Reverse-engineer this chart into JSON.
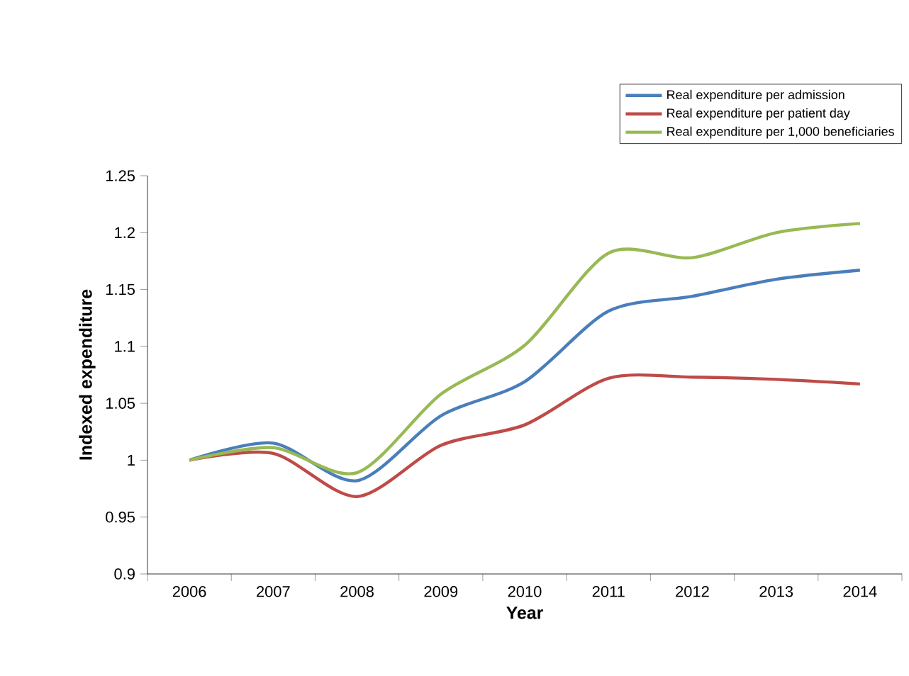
{
  "chart_data": {
    "type": "line",
    "xlabel": "Year",
    "ylabel": "Indexed expenditure",
    "categories": [
      "2006",
      "2007",
      "2008",
      "2009",
      "2010",
      "2011",
      "2012",
      "2013",
      "2014"
    ],
    "series": [
      {
        "name": "Real expenditure per admission",
        "color": "#4a7ebb",
        "values": [
          1.0,
          1.015,
          0.982,
          1.039,
          1.069,
          1.131,
          1.144,
          1.159,
          1.167
        ]
      },
      {
        "name": "Real expenditure per patient day",
        "color": "#be4b48",
        "values": [
          1.0,
          1.006,
          0.968,
          1.013,
          1.031,
          1.072,
          1.073,
          1.071,
          1.067
        ]
      },
      {
        "name": "Real expenditure per 1,000 beneficiaries",
        "color": "#98b954",
        "values": [
          1.0,
          1.011,
          0.989,
          1.058,
          1.101,
          1.182,
          1.178,
          1.2,
          1.208
        ]
      }
    ],
    "ylim": [
      0.9,
      1.25
    ],
    "yticks": [
      0.9,
      0.95,
      1,
      1.05,
      1.1,
      1.15,
      1.2,
      1.25
    ],
    "grid": false,
    "legend": "top right",
    "marker": "none"
  }
}
